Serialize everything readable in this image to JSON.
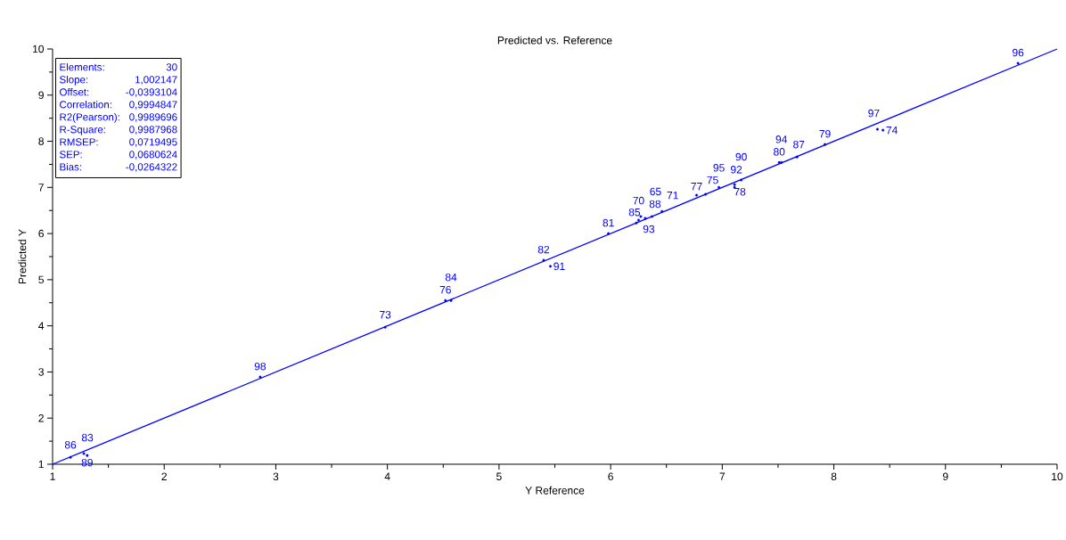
{
  "chart_data": {
    "type": "scatter",
    "title": "Predicted vs. Reference",
    "xlabel": "Y Reference",
    "ylabel": "Predicted Y",
    "xlim": [
      1,
      10
    ],
    "ylim": [
      1,
      10
    ],
    "xticks": [
      1,
      2,
      3,
      4,
      5,
      6,
      7,
      8,
      9,
      10
    ],
    "yticks": [
      1,
      2,
      3,
      4,
      5,
      6,
      7,
      8,
      9,
      10
    ],
    "grid": false,
    "series": [
      {
        "color": "#0000ff",
        "marker": "circle",
        "x": [
          1.16,
          1.28,
          1.31,
          2.86,
          3.98,
          4.52,
          4.57,
          5.4,
          5.46,
          5.98,
          6.23,
          6.25,
          6.27,
          6.31,
          6.37,
          6.46,
          6.77,
          6.85,
          6.97,
          7.11,
          7.11,
          7.17,
          7.51,
          7.53,
          7.67,
          7.92,
          8.39,
          8.44,
          9.65
        ],
        "values": [
          1.15,
          1.23,
          1.19,
          2.89,
          3.97,
          4.55,
          4.55,
          5.42,
          5.29,
          6.0,
          6.23,
          6.29,
          6.37,
          6.33,
          6.37,
          6.48,
          6.83,
          6.85,
          7.0,
          7.0,
          7.06,
          7.16,
          7.54,
          7.54,
          7.66,
          7.93,
          8.26,
          8.24,
          9.69
        ]
      },
      {
        "type": "line",
        "marker": "none",
        "color": "#0000ff",
        "x": [
          1,
          10
        ],
        "values": [
          1,
          10
        ]
      }
    ],
    "annotations": [
      "Elements:",
      "30",
      "Slope:",
      "1,002147",
      "Offset:",
      "-0,0393104",
      "Correlation:",
      "0,9994847",
      "R2(Pearson):",
      "0,9989696",
      "R-Square:",
      "0,9987968",
      "RMSEP:",
      "0,0719495",
      "SEP:",
      "0,0680624",
      "Bias:",
      "-0,0264322",
      {
        "text": "86",
        "x": 1.16,
        "y": 1.15
      },
      {
        "text": "83",
        "x": 1.28,
        "y": 1.23
      },
      {
        "text": "89",
        "x": 1.31,
        "y": 1.19
      },
      {
        "text": "98",
        "x": 2.86,
        "y": 2.89
      },
      {
        "text": "73",
        "x": 3.98,
        "y": 3.97
      },
      {
        "text": "76",
        "x": 4.52,
        "y": 4.55
      },
      {
        "text": "84",
        "x": 4.57,
        "y": 4.55
      },
      {
        "text": "82",
        "x": 5.4,
        "y": 5.42
      },
      {
        "text": "91",
        "x": 5.46,
        "y": 5.29
      },
      {
        "text": "81",
        "x": 5.98,
        "y": 6.0
      },
      {
        "text": "85",
        "x": 6.23,
        "y": 6.23
      },
      {
        "text": "70",
        "x": 6.25,
        "y": 6.29
      },
      {
        "text": "88",
        "x": 6.27,
        "y": 6.37
      },
      {
        "text": "93",
        "x": 6.31,
        "y": 6.33
      },
      {
        "text": "65",
        "x": 6.37,
        "y": 6.37
      },
      {
        "text": "71",
        "x": 6.46,
        "y": 6.48
      },
      {
        "text": "77",
        "x": 6.77,
        "y": 6.83
      },
      {
        "text": "75",
        "x": 6.85,
        "y": 6.85
      },
      {
        "text": "95",
        "x": 6.97,
        "y": 7.0
      },
      {
        "text": "92",
        "x": 7.11,
        "y": 7.0
      },
      {
        "text": "78",
        "x": 7.11,
        "y": 7.06
      },
      {
        "text": "90",
        "x": 7.17,
        "y": 7.16
      },
      {
        "text": "80",
        "x": 7.51,
        "y": 7.54
      },
      {
        "text": "94",
        "x": 7.53,
        "y": 7.54
      },
      {
        "text": "87",
        "x": 7.67,
        "y": 7.66
      },
      {
        "text": "79",
        "x": 7.92,
        "y": 7.93
      },
      {
        "text": "97",
        "x": 8.39,
        "y": 8.26
      },
      {
        "text": "74",
        "x": 8.44,
        "y": 8.24
      },
      {
        "text": "96",
        "x": 9.65,
        "y": 9.69
      }
    ]
  }
}
